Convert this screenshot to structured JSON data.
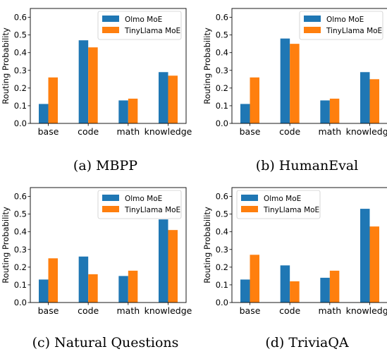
{
  "colors": {
    "olmo": "#1f77b4",
    "tinyllama": "#ff7f0e"
  },
  "chart_data": [
    {
      "type": "bar",
      "caption": "(a) MBPP",
      "categories": [
        "base",
        "code",
        "math",
        "knowledge"
      ],
      "ylabel": "Routing Probability",
      "ylim": [
        0,
        0.65
      ],
      "yticks": [
        "0.0",
        "0.1",
        "0.2",
        "0.3",
        "0.4",
        "0.5",
        "0.6"
      ],
      "legend_position": "top-right",
      "series": [
        {
          "name": "Olmo MoE",
          "values": [
            0.11,
            0.47,
            0.13,
            0.29
          ]
        },
        {
          "name": "TinyLlama MoE",
          "values": [
            0.26,
            0.43,
            0.14,
            0.27
          ]
        }
      ]
    },
    {
      "type": "bar",
      "caption": "(b) HumanEval",
      "categories": [
        "base",
        "code",
        "math",
        "knowledge"
      ],
      "ylabel": "Routing Probability",
      "ylim": [
        0,
        0.65
      ],
      "yticks": [
        "0.0",
        "0.1",
        "0.2",
        "0.3",
        "0.4",
        "0.5",
        "0.6"
      ],
      "legend_position": "top-right",
      "series": [
        {
          "name": "Olmo MoE",
          "values": [
            0.11,
            0.48,
            0.13,
            0.29
          ]
        },
        {
          "name": "TinyLlama MoE",
          "values": [
            0.26,
            0.45,
            0.14,
            0.25
          ]
        }
      ]
    },
    {
      "type": "bar",
      "caption": "(c) Natural Questions",
      "categories": [
        "base",
        "code",
        "math",
        "knowledge"
      ],
      "ylabel": "Routing Probability",
      "ylim": [
        0,
        0.65
      ],
      "yticks": [
        "0.0",
        "0.1",
        "0.2",
        "0.3",
        "0.4",
        "0.5",
        "0.6"
      ],
      "legend_position": "top-right",
      "series": [
        {
          "name": "Olmo MoE",
          "values": [
            0.13,
            0.26,
            0.15,
            0.47
          ]
        },
        {
          "name": "TinyLlama MoE",
          "values": [
            0.25,
            0.16,
            0.18,
            0.41
          ]
        }
      ]
    },
    {
      "type": "bar",
      "caption": "(d) TriviaQA",
      "categories": [
        "base",
        "code",
        "math",
        "knowledge"
      ],
      "ylabel": "Routing Probability",
      "ylim": [
        0,
        0.65
      ],
      "yticks": [
        "0.0",
        "0.1",
        "0.2",
        "0.3",
        "0.4",
        "0.5",
        "0.6"
      ],
      "legend_position": "top-left",
      "series": [
        {
          "name": "Olmo MoE",
          "values": [
            0.13,
            0.21,
            0.14,
            0.53
          ]
        },
        {
          "name": "TinyLlama MoE",
          "values": [
            0.27,
            0.12,
            0.18,
            0.43
          ]
        }
      ]
    }
  ]
}
